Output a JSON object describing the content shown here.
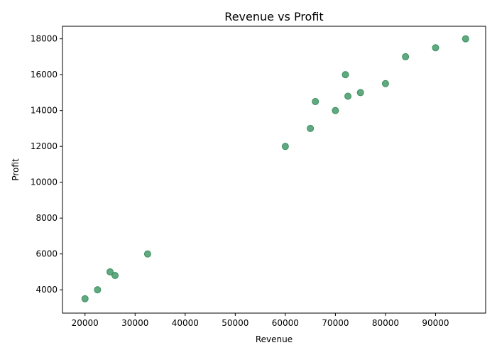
{
  "chart_data": {
    "type": "scatter",
    "title": "Revenue vs Profit",
    "xlabel": "Revenue",
    "ylabel": "Profit",
    "xlim": [
      15500,
      100000
    ],
    "ylim": [
      2700,
      18700
    ],
    "xticks": [
      20000,
      30000,
      40000,
      50000,
      60000,
      70000,
      80000,
      90000
    ],
    "yticks": [
      4000,
      6000,
      8000,
      10000,
      12000,
      14000,
      16000,
      18000
    ],
    "grid": false,
    "marker_color": "#2e8b57",
    "series": [
      {
        "x": [
          20000,
          22500,
          25000,
          26000,
          32500,
          60000,
          65000,
          66000,
          70000,
          72000,
          72500,
          75000,
          80000,
          84000,
          90000,
          96000
        ],
        "y": [
          3500,
          4000,
          5000,
          4800,
          6000,
          12000,
          13000,
          14500,
          14000,
          16000,
          14800,
          15000,
          15500,
          17000,
          17500,
          18000
        ]
      }
    ]
  }
}
